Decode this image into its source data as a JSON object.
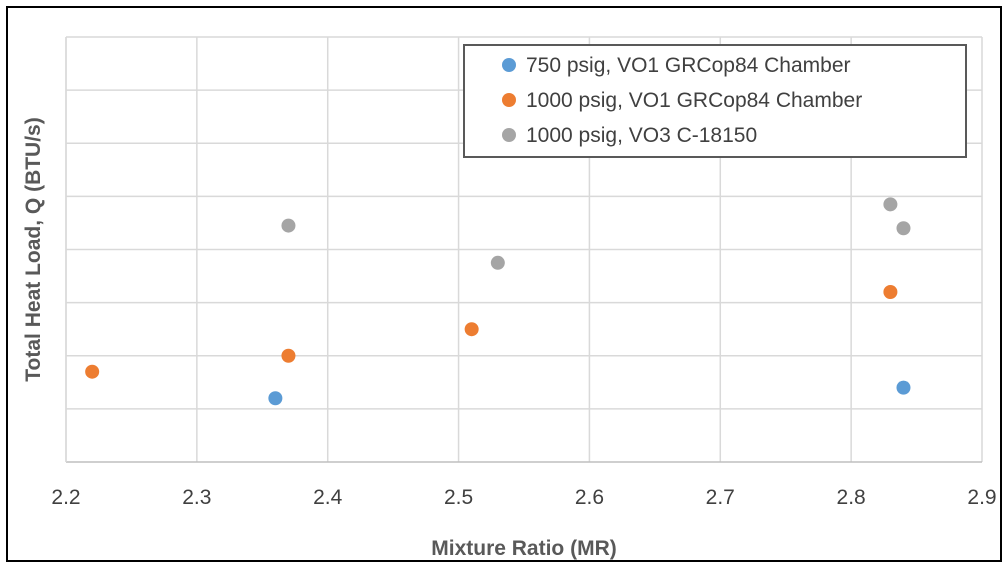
{
  "chart_data": {
    "type": "scatter",
    "title": "",
    "xlabel": "Mixture Ratio (MR)",
    "ylabel": "Total Heat Load, Q (BTU/s)",
    "xlim": [
      2.2,
      2.9
    ],
    "ylim": [
      0,
      8
    ],
    "x_ticks": [
      "2.2",
      "2.3",
      "2.4",
      "2.5",
      "2.6",
      "2.7",
      "2.8",
      "2.9"
    ],
    "y_tick_labels_shown": false,
    "grid": true,
    "legend_position": "top-right",
    "series": [
      {
        "name": "750 psig, VO1 GRCop84 Chamber",
        "color": "#5B9BD5",
        "points": [
          [
            2.36,
            1.2
          ],
          [
            2.84,
            1.4
          ]
        ]
      },
      {
        "name": "1000 psig, VO1 GRCop84 Chamber",
        "color": "#ED7D31",
        "points": [
          [
            2.22,
            1.7
          ],
          [
            2.37,
            2.0
          ],
          [
            2.51,
            2.5
          ],
          [
            2.83,
            3.2
          ]
        ]
      },
      {
        "name": "1000 psig, VO3 C-18150",
        "color": "#A5A5A5",
        "points": [
          [
            2.37,
            4.45
          ],
          [
            2.53,
            3.75
          ],
          [
            2.83,
            4.85
          ],
          [
            2.84,
            4.4
          ]
        ]
      }
    ]
  }
}
